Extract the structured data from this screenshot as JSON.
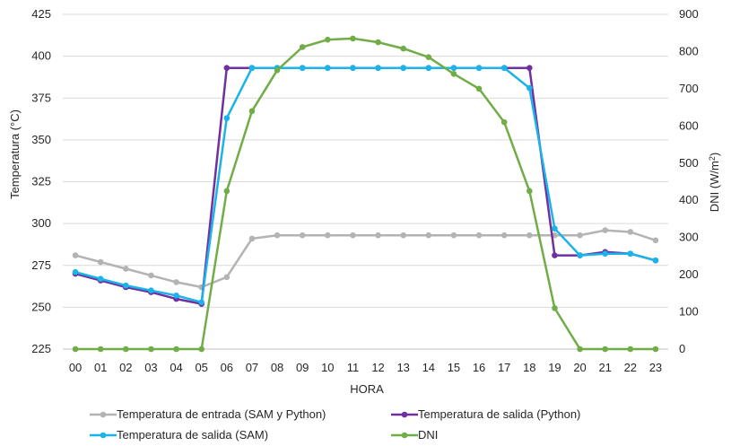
{
  "chart_data": {
    "type": "line",
    "x": [
      "00",
      "01",
      "02",
      "03",
      "04",
      "05",
      "06",
      "07",
      "08",
      "09",
      "10",
      "11",
      "12",
      "13",
      "14",
      "15",
      "16",
      "17",
      "18",
      "19",
      "20",
      "21",
      "22",
      "23"
    ],
    "xlabel": "HORA",
    "ylabel": "Temperatura (°C)",
    "y2label_main": "DNI (W/m",
    "y2label_sup": "2",
    "y2label_end": ")",
    "ylim": [
      225,
      425
    ],
    "yticks": [
      225,
      250,
      275,
      300,
      325,
      350,
      375,
      400,
      425
    ],
    "y2lim": [
      0,
      900
    ],
    "y2ticks": [
      0,
      100,
      200,
      300,
      400,
      500,
      600,
      700,
      800,
      900
    ],
    "grid": "horizontal",
    "legend_position": "bottom",
    "series": [
      {
        "name": "Temperatura de entrada (SAM y Python)",
        "axis": "left",
        "color": "#b3b3b3",
        "values": [
          281,
          277,
          273,
          269,
          265,
          262,
          268,
          291,
          293,
          293,
          293,
          293,
          293,
          293,
          293,
          293,
          293,
          293,
          293,
          293,
          293,
          296,
          295,
          290
        ]
      },
      {
        "name": "Temperatura de salida (Python)",
        "axis": "left",
        "color": "#7030a0",
        "values": [
          270,
          266,
          262,
          259,
          255,
          252,
          393,
          393,
          393,
          393,
          393,
          393,
          393,
          393,
          393,
          393,
          393,
          393,
          393,
          281,
          281,
          283,
          282,
          278
        ]
      },
      {
        "name": "Temperatura de salida (SAM)",
        "axis": "left",
        "color": "#1ab3ea",
        "values": [
          271,
          267,
          263,
          260,
          257,
          253,
          363,
          393,
          393,
          393,
          393,
          393,
          393,
          393,
          393,
          393,
          393,
          393,
          381,
          297,
          281,
          282,
          282,
          278
        ]
      },
      {
        "name": "DNI",
        "axis": "right",
        "color": "#70ad47",
        "values": [
          0,
          0,
          0,
          0,
          0,
          0,
          425,
          640,
          750,
          812,
          832,
          835,
          825,
          808,
          785,
          740,
          700,
          610,
          425,
          110,
          0,
          0,
          0,
          0
        ]
      }
    ]
  }
}
